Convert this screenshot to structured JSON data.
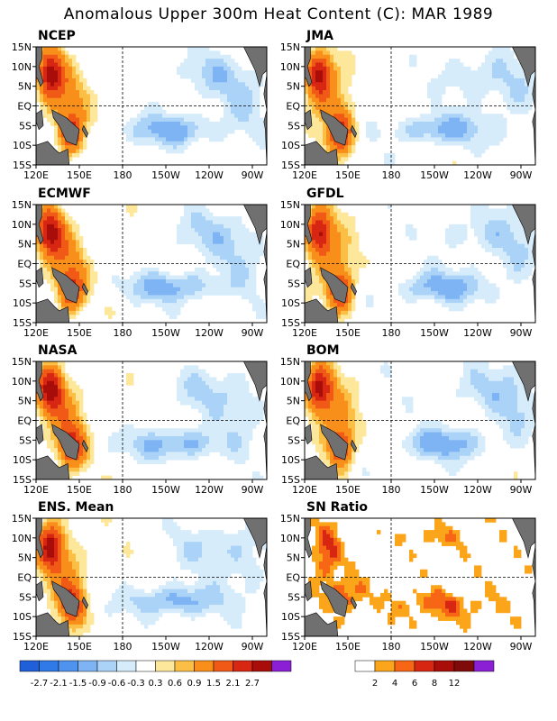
{
  "title": "Anomalous Upper 300m Heat Content (C): MAR 1989",
  "colors": {
    "anomaly_scale": [
      "#1f5fd8",
      "#2f7ae6",
      "#4f93ee",
      "#7eb4f4",
      "#abd3f8",
      "#d6ecfb",
      "#ffffff",
      "#fde79a",
      "#fbbf45",
      "#f98f1b",
      "#f05a16",
      "#d72712",
      "#a80d0a",
      "#8a1fd6"
    ],
    "sn_scale": [
      "#ffffff",
      "#fba51a",
      "#f76614",
      "#d72712",
      "#a80d0a",
      "#7e0a0a",
      "#8a1fd6"
    ],
    "land": "#707070"
  },
  "chart_data": [
    {
      "type": "heatmap",
      "panel": "NCEP",
      "title": "NCEP",
      "xticks": [
        "120E",
        "150E",
        "180",
        "150W",
        "120W",
        "90W"
      ],
      "yticks": [
        "15N",
        "10N",
        "5N",
        "EQ",
        "5S",
        "10S",
        "15S"
      ],
      "xlim": [
        120,
        280
      ],
      "ylim": [
        -15,
        15
      ],
      "legend": "anomaly"
    },
    {
      "type": "heatmap",
      "panel": "JMA",
      "title": "JMA",
      "xticks": [
        "120E",
        "150E",
        "180",
        "150W",
        "120W",
        "90W"
      ],
      "yticks": [
        "15N",
        "10N",
        "5N",
        "EQ",
        "5S",
        "10S",
        "15S"
      ],
      "xlim": [
        120,
        280
      ],
      "ylim": [
        -15,
        15
      ],
      "legend": "anomaly"
    },
    {
      "type": "heatmap",
      "panel": "ECMWF",
      "title": "ECMWF",
      "xticks": [
        "120E",
        "150E",
        "180",
        "150W",
        "120W",
        "90W"
      ],
      "yticks": [
        "15N",
        "10N",
        "5N",
        "EQ",
        "5S",
        "10S",
        "15S"
      ],
      "xlim": [
        120,
        280
      ],
      "ylim": [
        -15,
        15
      ],
      "legend": "anomaly"
    },
    {
      "type": "heatmap",
      "panel": "GFDL",
      "title": "GFDL",
      "xticks": [
        "120E",
        "150E",
        "180",
        "150W",
        "120W",
        "90W"
      ],
      "yticks": [
        "15N",
        "10N",
        "5N",
        "EQ",
        "5S",
        "10S",
        "15S"
      ],
      "xlim": [
        120,
        280
      ],
      "ylim": [
        -15,
        15
      ],
      "legend": "anomaly"
    },
    {
      "type": "heatmap",
      "panel": "NASA",
      "title": "NASA",
      "xticks": [
        "120E",
        "150E",
        "180",
        "150W",
        "120W",
        "90W"
      ],
      "yticks": [
        "15N",
        "10N",
        "5N",
        "EQ",
        "5S",
        "10S",
        "15S"
      ],
      "xlim": [
        120,
        280
      ],
      "ylim": [
        -15,
        15
      ],
      "legend": "anomaly"
    },
    {
      "type": "heatmap",
      "panel": "BOM",
      "title": "BOM",
      "xticks": [
        "120E",
        "150E",
        "180",
        "150W",
        "120W",
        "90W"
      ],
      "yticks": [
        "15N",
        "10N",
        "5N",
        "EQ",
        "5S",
        "10S",
        "15S"
      ],
      "xlim": [
        120,
        280
      ],
      "ylim": [
        -15,
        15
      ],
      "legend": "anomaly"
    },
    {
      "type": "heatmap",
      "panel": "ENS. Mean",
      "title": "ENS. Mean",
      "xticks": [
        "120E",
        "150E",
        "180",
        "150W",
        "120W",
        "90W"
      ],
      "yticks": [
        "15N",
        "10N",
        "5N",
        "EQ",
        "5S",
        "10S",
        "15S"
      ],
      "xlim": [
        120,
        280
      ],
      "ylim": [
        -15,
        15
      ],
      "legend": "anomaly"
    },
    {
      "type": "heatmap",
      "panel": "SN Ratio",
      "title": "SN Ratio",
      "xticks": [
        "120E",
        "150E",
        "180",
        "150W",
        "120W",
        "90W"
      ],
      "yticks": [
        "15N",
        "10N",
        "5N",
        "EQ",
        "5S",
        "10S",
        "15S"
      ],
      "xlim": [
        120,
        280
      ],
      "ylim": [
        -15,
        15
      ],
      "legend": "sn"
    }
  ],
  "legend_anomaly": {
    "labels": [
      "-2.7",
      "-2.1",
      "-1.5",
      "-0.9",
      "-0.6",
      "-0.3",
      "0.3",
      "0.6",
      "0.9",
      "1.5",
      "2.1",
      "2.7"
    ]
  },
  "legend_sn": {
    "labels": [
      "2",
      "4",
      "6",
      "8",
      "12"
    ]
  }
}
